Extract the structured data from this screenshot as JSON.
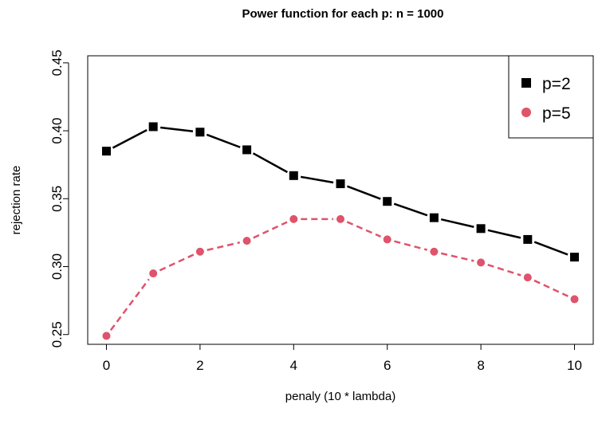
{
  "chart_data": {
    "type": "line",
    "title": "Power function for each p:   n = 1000",
    "xlabel": "penaly (10 * lambda)",
    "ylabel": "rejection rate",
    "xlim": [
      -0.4,
      10.4
    ],
    "ylim": [
      0.2428,
      0.4552
    ],
    "x_ticks": [
      0,
      2,
      4,
      6,
      8,
      10
    ],
    "y_ticks": [
      0.25,
      0.3,
      0.35,
      0.4,
      0.45
    ],
    "x_tick_labels": [
      "0",
      "2",
      "4",
      "6",
      "8",
      "10"
    ],
    "y_tick_labels": [
      "0.25",
      "0.30",
      "0.35",
      "0.40",
      "0.45"
    ],
    "x": [
      0,
      1,
      2,
      3,
      4,
      5,
      6,
      7,
      8,
      9,
      10
    ],
    "series": [
      {
        "name": "p=2",
        "color": "#000000",
        "marker": "square",
        "line_style": "solid",
        "values": [
          0.385,
          0.403,
          0.399,
          0.386,
          0.367,
          0.361,
          0.348,
          0.336,
          0.328,
          0.32,
          0.307
        ]
      },
      {
        "name": "p=5",
        "color": "#DF536B",
        "marker": "circle",
        "line_style": "dashed",
        "values": [
          0.249,
          0.295,
          0.311,
          0.319,
          0.335,
          0.335,
          0.32,
          0.311,
          0.303,
          0.292,
          0.276
        ]
      }
    ],
    "grid": false,
    "legend_position": "top-right"
  }
}
